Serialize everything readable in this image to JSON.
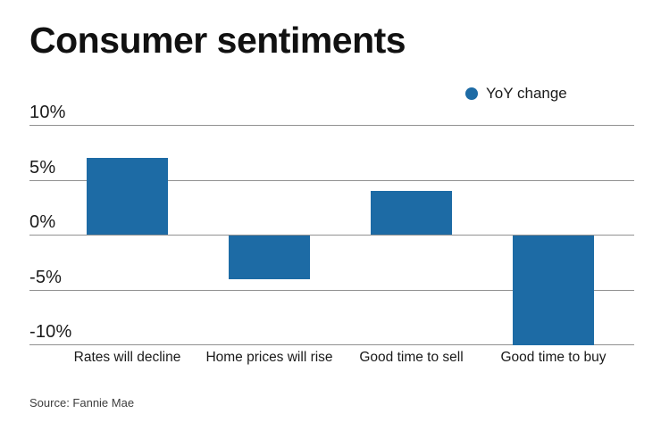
{
  "header": {
    "title": "Consumer sentiments"
  },
  "legend": {
    "label": "YoY change",
    "marker": "circle-icon",
    "marker_color": "#1d6ba5"
  },
  "footer": {
    "source": "Source: Fannie Mae"
  },
  "colors": {
    "bar": "#1d6ba5",
    "gridline": "#919191",
    "text": "#1a1a1a",
    "background": "#ffffff"
  },
  "chart_data": {
    "type": "bar",
    "title": "Consumer sentiments",
    "categories": [
      "Rates will decline",
      "Home prices will rise",
      "Good time to sell",
      "Good time to buy"
    ],
    "series": [
      {
        "name": "YoY change",
        "values": [
          7,
          -4,
          4,
          -10
        ]
      }
    ],
    "unit": "%",
    "xlabel": "",
    "ylabel": "",
    "ylim": [
      -10,
      10
    ],
    "yticks": [
      10,
      5,
      0,
      -5,
      -10
    ],
    "ytick_labels": [
      "10%",
      "5%",
      "0%",
      "-5%",
      "-10%"
    ],
    "grid": "horizontal",
    "legend_position": "top-right",
    "source": "Source: Fannie Mae"
  }
}
